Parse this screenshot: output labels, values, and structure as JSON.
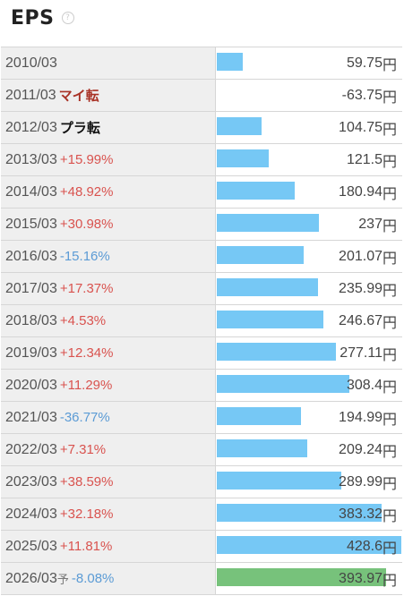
{
  "header": {
    "title": "EPS",
    "help_glyph": "?"
  },
  "unit": "円",
  "chart_data": {
    "type": "bar",
    "title": "EPS",
    "orientation": "horizontal",
    "bar_max_value": 428.6,
    "colors": {
      "actual": "#76c8f5",
      "forecast": "#77c27b",
      "increase": "#d9534f",
      "decrease": "#5b9bd5"
    },
    "rows": [
      {
        "year": "2010/03",
        "change": "",
        "change_type": "",
        "value": 59.75,
        "value_text": "59.75",
        "forecast": false
      },
      {
        "year": "2011/03",
        "change": "マイ転",
        "change_type": "turn-neg",
        "value": -63.75,
        "value_text": "-63.75",
        "forecast": false
      },
      {
        "year": "2012/03",
        "change": "プラ転",
        "change_type": "turn-pos",
        "value": 104.75,
        "value_text": "104.75",
        "forecast": false
      },
      {
        "year": "2013/03",
        "change": "+15.99%",
        "change_type": "pos",
        "value": 121.5,
        "value_text": "121.5",
        "forecast": false
      },
      {
        "year": "2014/03",
        "change": "+48.92%",
        "change_type": "pos",
        "value": 180.94,
        "value_text": "180.94",
        "forecast": false
      },
      {
        "year": "2015/03",
        "change": "+30.98%",
        "change_type": "pos",
        "value": 237,
        "value_text": "237",
        "forecast": false
      },
      {
        "year": "2016/03",
        "change": "-15.16%",
        "change_type": "neg",
        "value": 201.07,
        "value_text": "201.07",
        "forecast": false
      },
      {
        "year": "2017/03",
        "change": "+17.37%",
        "change_type": "pos",
        "value": 235.99,
        "value_text": "235.99",
        "forecast": false
      },
      {
        "year": "2018/03",
        "change": "+4.53%",
        "change_type": "pos",
        "value": 246.67,
        "value_text": "246.67",
        "forecast": false
      },
      {
        "year": "2019/03",
        "change": "+12.34%",
        "change_type": "pos",
        "value": 277.11,
        "value_text": "277.11",
        "forecast": false
      },
      {
        "year": "2020/03",
        "change": "+11.29%",
        "change_type": "pos",
        "value": 308.4,
        "value_text": "308.4",
        "forecast": false
      },
      {
        "year": "2021/03",
        "change": "-36.77%",
        "change_type": "neg",
        "value": 194.99,
        "value_text": "194.99",
        "forecast": false
      },
      {
        "year": "2022/03",
        "change": "+7.31%",
        "change_type": "pos",
        "value": 209.24,
        "value_text": "209.24",
        "forecast": false
      },
      {
        "year": "2023/03",
        "change": "+38.59%",
        "change_type": "pos",
        "value": 289.99,
        "value_text": "289.99",
        "forecast": false
      },
      {
        "year": "2024/03",
        "change": "+32.18%",
        "change_type": "pos",
        "value": 383.32,
        "value_text": "383.32",
        "forecast": false
      },
      {
        "year": "2025/03",
        "change": "+11.81%",
        "change_type": "pos",
        "value": 428.6,
        "value_text": "428.6",
        "forecast": false
      },
      {
        "year": "2026/03",
        "change": "-8.08%",
        "change_type": "neg",
        "value": 393.97,
        "value_text": "393.97",
        "forecast": true,
        "forecast_mark": "予"
      }
    ]
  }
}
